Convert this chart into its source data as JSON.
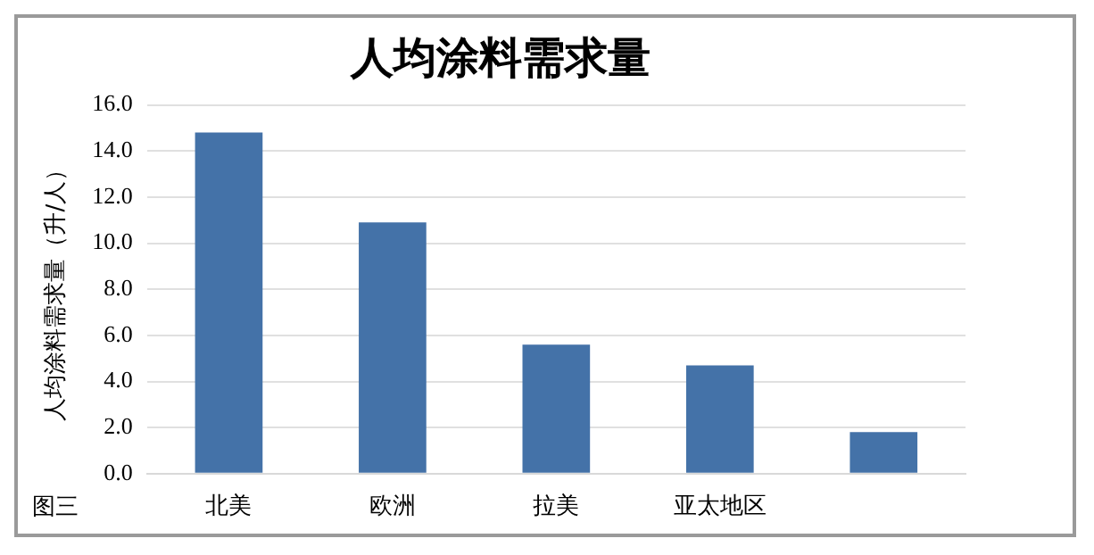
{
  "chart_data": {
    "type": "bar",
    "title": "人均涂料需求量",
    "ylabel": "人均涂料需求量（升/人）",
    "categories": [
      "北美",
      "欧洲",
      "拉美",
      "亚太地区",
      null
    ],
    "values": [
      14.8,
      10.9,
      5.6,
      4.7,
      1.8
    ],
    "color": "#4472a8",
    "ylim": [
      0,
      16
    ],
    "yticks": [
      {
        "value": 0,
        "label": "0.0"
      },
      {
        "value": 2,
        "label": "2.0"
      },
      {
        "value": 4,
        "label": "4.0"
      },
      {
        "value": 6,
        "label": "6.0"
      },
      {
        "value": 8,
        "label": "8.0"
      },
      {
        "value": 10,
        "label": "10.0"
      },
      {
        "value": 12,
        "label": "12.0"
      },
      {
        "value": 14,
        "label": "14.0"
      },
      {
        "value": 16,
        "label": "16.0"
      }
    ],
    "grid": "y",
    "legend": false,
    "annotations": [
      "图三"
    ]
  }
}
